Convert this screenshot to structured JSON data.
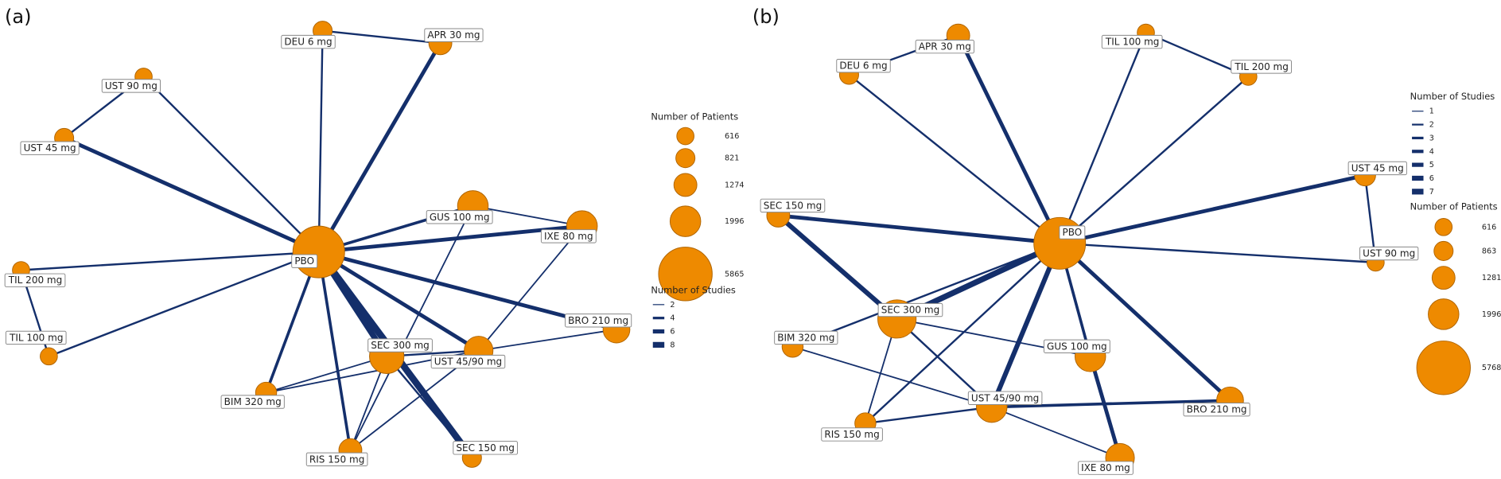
{
  "panels": [
    {
      "label": "(a)",
      "nodes": [
        "PBO",
        "APR 30 mg",
        "DEU 6 mg",
        "UST 90 mg",
        "UST 45 mg",
        "TIL 200 mg",
        "TIL 100 mg",
        "GUS 100 mg",
        "IXE 80 mg",
        "BRO 210 mg",
        "SEC 300 mg",
        "UST 45/90 mg",
        "BIM 320 mg",
        "RIS 150 mg",
        "SEC 150 mg"
      ],
      "legend": {
        "patients_title": "Number of Patients",
        "patients": [
          616,
          821,
          1274,
          1996,
          5865
        ],
        "studies_title": "Number of Studies",
        "studies": [
          2,
          4,
          6,
          8
        ]
      }
    },
    {
      "label": "(b)",
      "nodes": [
        "PBO",
        "APR 30 mg",
        "DEU 6 mg",
        "TIL 100 mg",
        "TIL 200 mg",
        "UST 45 mg",
        "UST 90 mg",
        "SEC 150 mg",
        "SEC 300 mg",
        "BIM 320 mg",
        "GUS 100 mg",
        "UST 45/90 mg",
        "RIS 150 mg",
        "BRO 210 mg",
        "IXE 80 mg"
      ],
      "legend": {
        "studies_title": "Number of Studies",
        "studies": [
          1,
          2,
          3,
          4,
          5,
          6,
          7
        ],
        "patients_title": "Number of Patients",
        "patients": [
          616,
          863,
          1281,
          1996,
          5768
        ]
      }
    }
  ]
}
